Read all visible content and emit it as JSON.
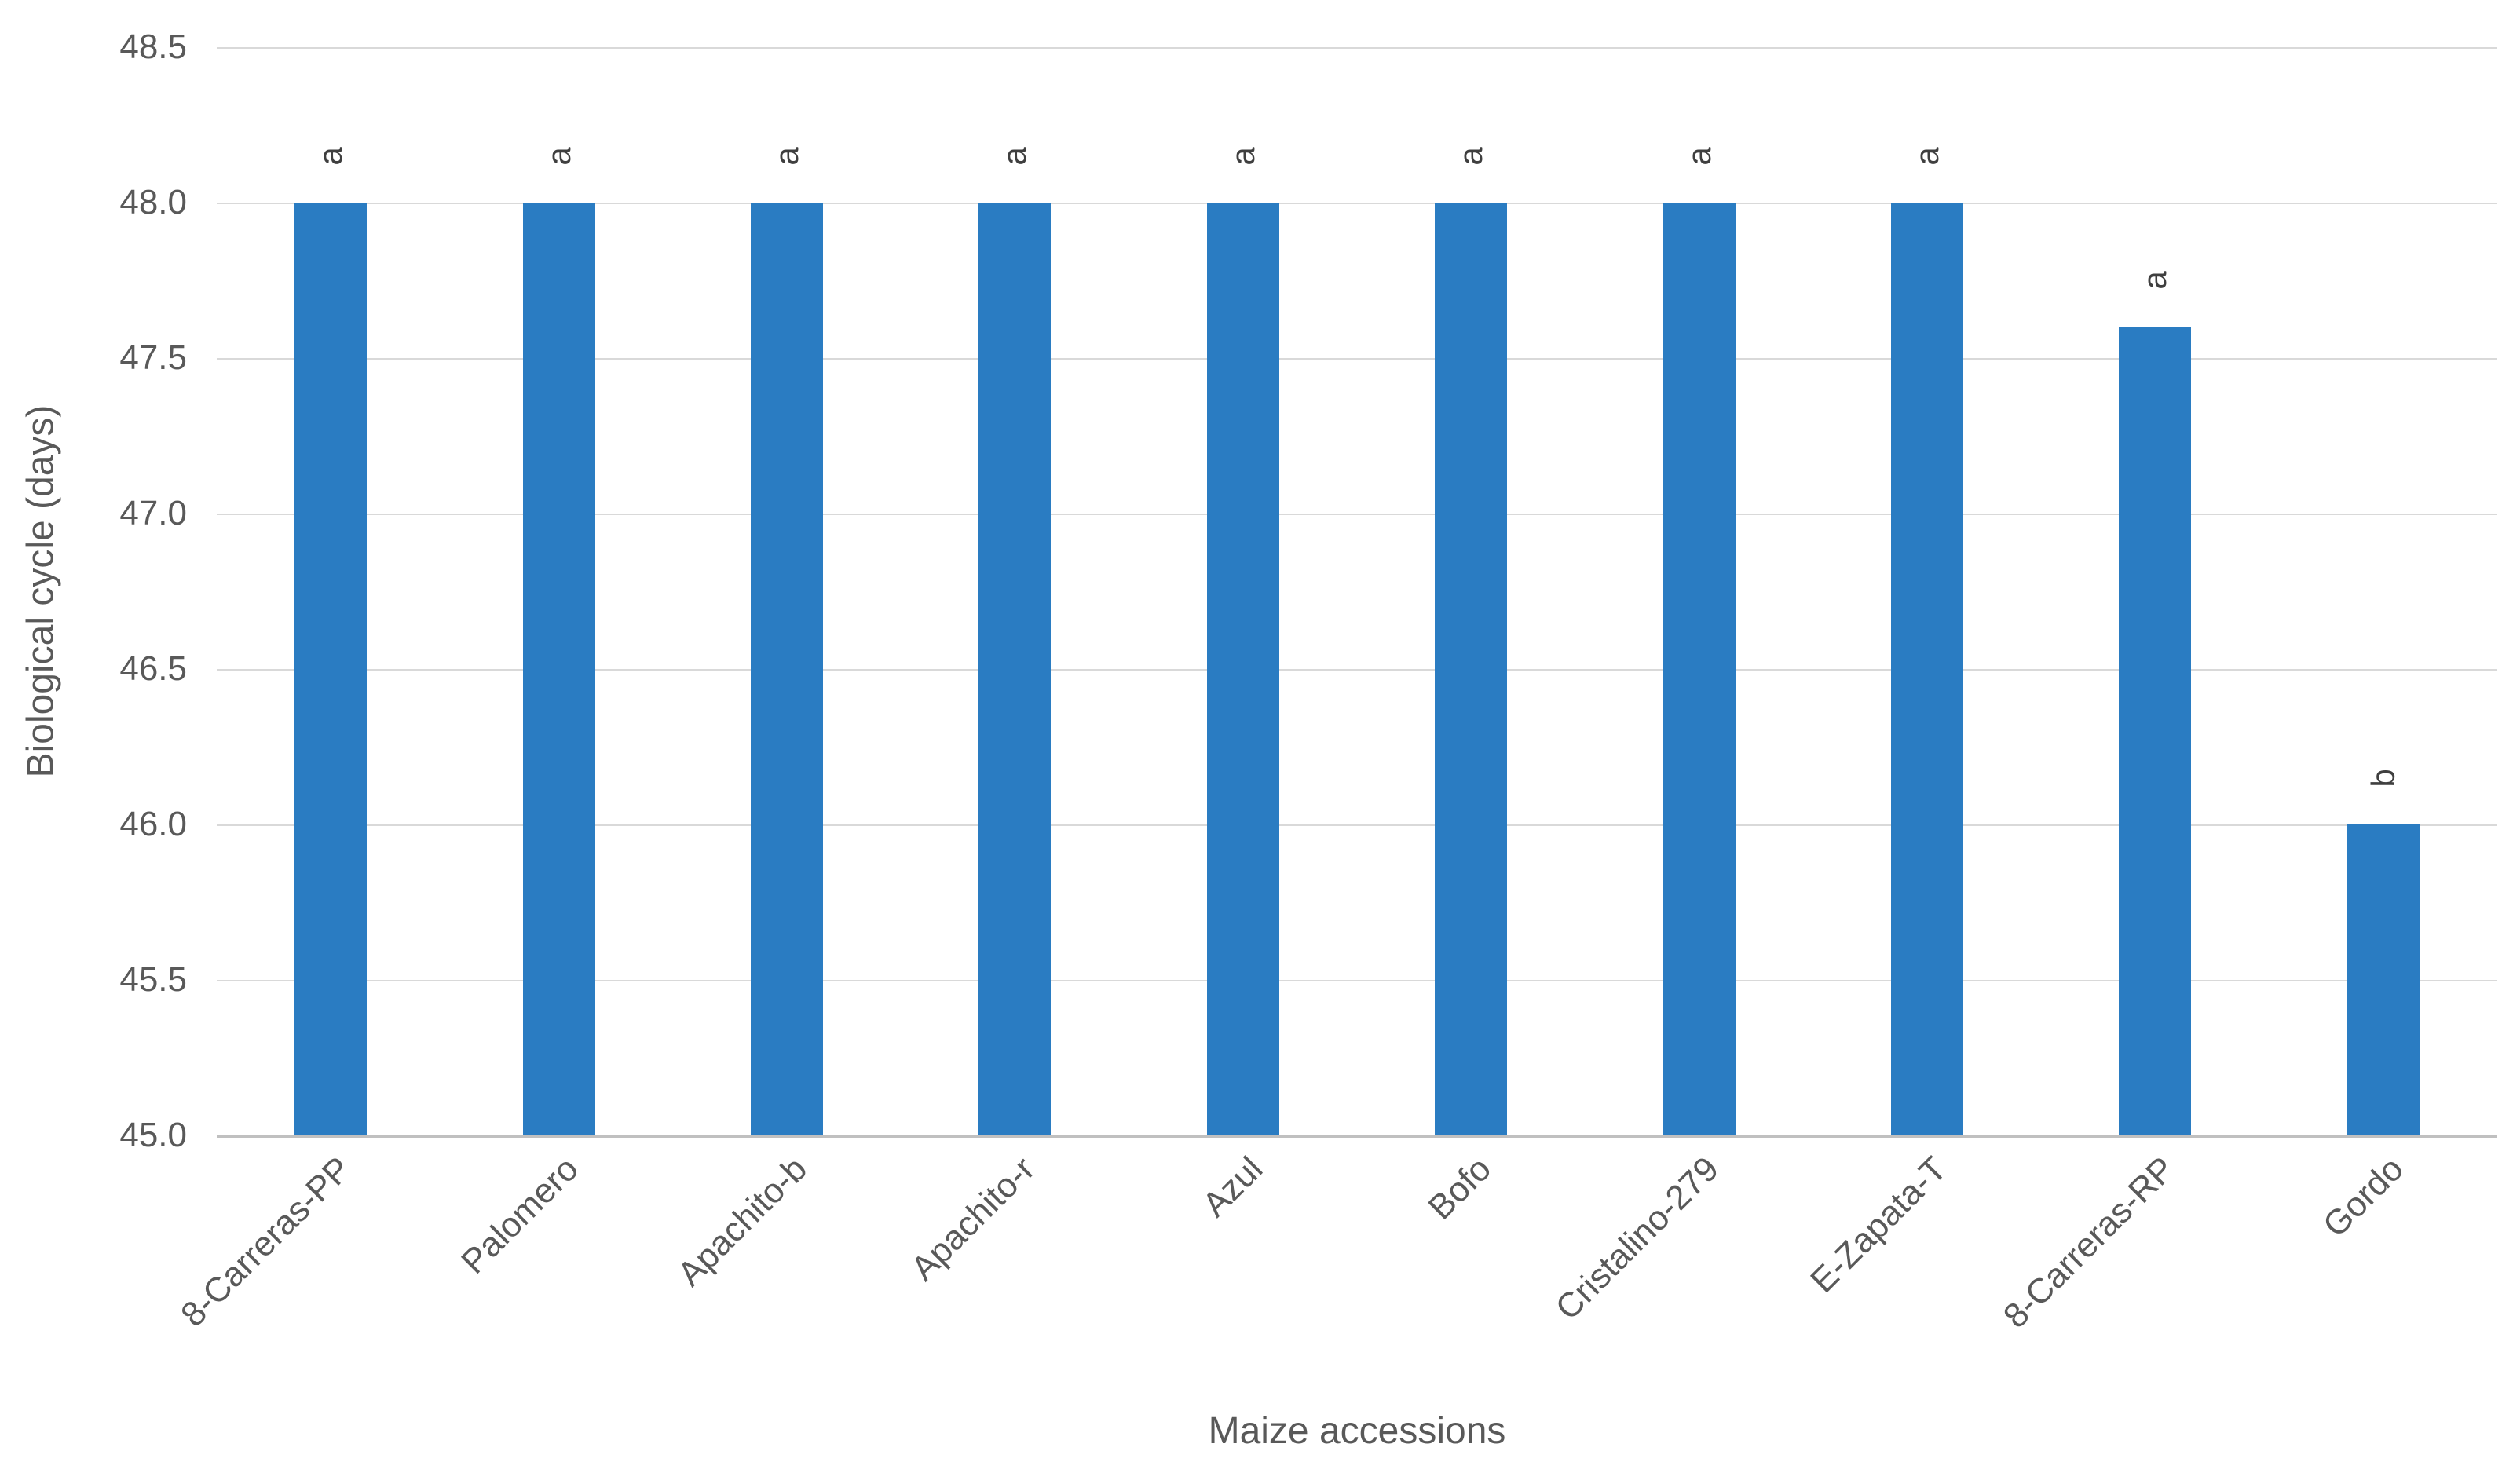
{
  "chart_data": {
    "type": "bar",
    "categories": [
      "8-Carreras-PP",
      "Palomero",
      "Apachito-b",
      "Apachito-r",
      "Azul",
      "Bofo",
      "Cristalino-279",
      "E-Zapata-T",
      "8-Carreras-RP",
      "Gordo"
    ],
    "values": [
      48.0,
      48.0,
      48.0,
      48.0,
      48.0,
      48.0,
      48.0,
      48.0,
      47.6,
      46.0
    ],
    "bar_labels": [
      "a",
      "a",
      "a",
      "a",
      "a",
      "a",
      "a",
      "a",
      "a",
      "b"
    ],
    "xlabel": "Maize accessions",
    "ylabel": "Biological cycle (days)",
    "ylim": [
      45.0,
      48.5
    ],
    "ytick_step": 0.5,
    "ytick_labels": [
      "48.5",
      "48.0",
      "47.5",
      "47.0",
      "46.5",
      "46.0",
      "45.5",
      "45.0"
    ],
    "grid": true,
    "legend_position": "none",
    "bar_color": "#2A7CC2",
    "gridline_color": "#D9D9D9",
    "axisline_color": "#C0C0C0",
    "label_color": "#595959",
    "letter_color": "#3F3F3F"
  }
}
